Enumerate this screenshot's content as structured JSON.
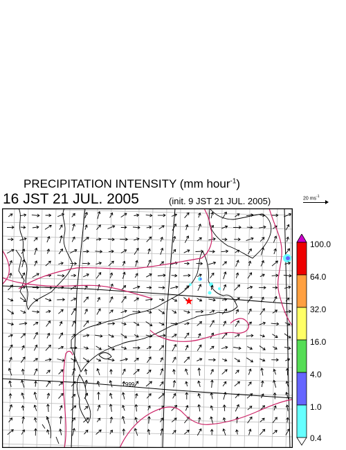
{
  "title": {
    "text": "PRECIPITATION INTENSITY (mm hour",
    "unit_exp": "-1",
    "close": ")"
  },
  "valid_time": "16 JST 21 JUL. 2005",
  "init_time": "(init. 9 JST 21 JUL. 2005)",
  "reference_vector": {
    "label": "20 ms",
    "exp": "-1"
  },
  "contour_label": "999",
  "colorbar": {
    "labels": [
      "100.0",
      "64.0",
      "32.0",
      "16.0",
      "4.0",
      "1.0",
      "0.4"
    ],
    "colors": [
      "#cc00cc",
      "#ee0000",
      "#ffa040",
      "#ffff66",
      "#55dd55",
      "#6666ff",
      "#66ffff",
      "#ffffff"
    ]
  },
  "colors": {
    "contour": "#cc2266",
    "grid": "#b4b4b4",
    "latlon": "#000000",
    "marker": "#ff0000"
  },
  "icons": {
    "marker": "red-star-icon",
    "overflow": "triangle-icon"
  }
}
